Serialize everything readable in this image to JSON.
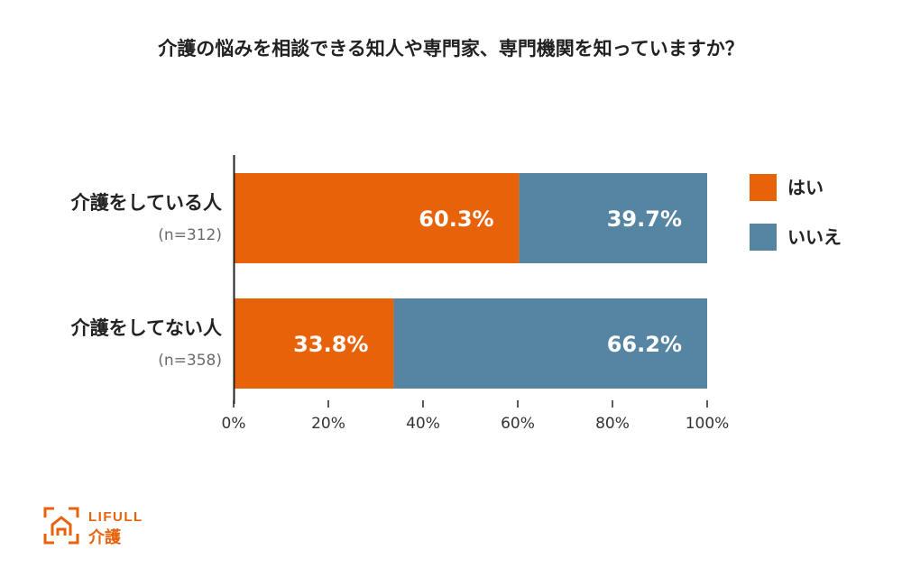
{
  "chart_data": {
    "type": "bar",
    "orientation": "horizontal",
    "stacked": true,
    "title": "介護の悩みを相談できる知人や専門家、専門機関を知っていますか？",
    "categories": [
      "介護をしている人",
      "介護をしてない人"
    ],
    "sample_sizes": [
      "(n=312)",
      "(n=358)"
    ],
    "series": [
      {
        "name": "はい",
        "values": [
          60.3,
          33.8
        ],
        "labels": [
          "60.3%",
          "33.8%"
        ],
        "color": "#E8620A"
      },
      {
        "name": "いいえ",
        "values": [
          39.7,
          66.2
        ],
        "labels": [
          "39.7%",
          "66.2%"
        ],
        "color": "#5585A3"
      }
    ],
    "xlim": [
      0,
      100
    ],
    "xticks": [
      "0%",
      "20%",
      "40%",
      "60%",
      "80%",
      "100%"
    ],
    "grid": false,
    "legend_position": "right"
  },
  "logo": {
    "text": "LIFULL",
    "subtext": "介護",
    "color": "#E8620A"
  }
}
